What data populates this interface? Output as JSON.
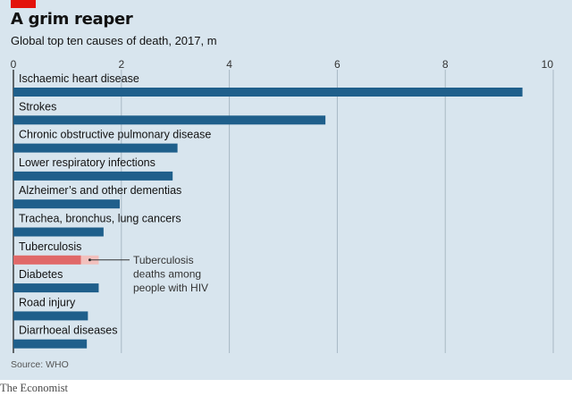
{
  "header": {
    "title": "A grim reaper",
    "subtitle": "Global top ten causes of death, 2017, m"
  },
  "source": "Source: WHO",
  "footer": "The Economist",
  "colors": {
    "background": "#d8e5ee",
    "bar": "#1f5f8b",
    "highlight": "#e06868",
    "highlight_light": "#f2c0bd",
    "brand": "#e3120b"
  },
  "chart_data": {
    "type": "bar",
    "orientation": "horizontal",
    "title": "A grim reaper",
    "subtitle": "Global top ten causes of death, 2017, m",
    "xlim": [
      0,
      10
    ],
    "xticks": [
      0,
      2,
      4,
      6,
      8,
      10
    ],
    "grid": true,
    "categories": [
      "Ischaemic heart disease",
      "Strokes",
      "Chronic obstructive pulmonary disease",
      "Lower respiratory infections",
      "Alzheimer’s and other dementias",
      "Trachea, bronchus, lung cancers",
      "Tuberculosis",
      "Diabetes",
      "Road injury",
      "Diarrhoeal diseases"
    ],
    "values": [
      9.43,
      5.78,
      3.04,
      2.95,
      1.97,
      1.67,
      1.58,
      1.58,
      1.38,
      1.36
    ],
    "tuberculosis_hiv_deaths": 1.25,
    "annotation": {
      "category": "Tuberculosis",
      "lines": [
        "Tuberculosis",
        "deaths among",
        "people with HIV"
      ]
    }
  }
}
